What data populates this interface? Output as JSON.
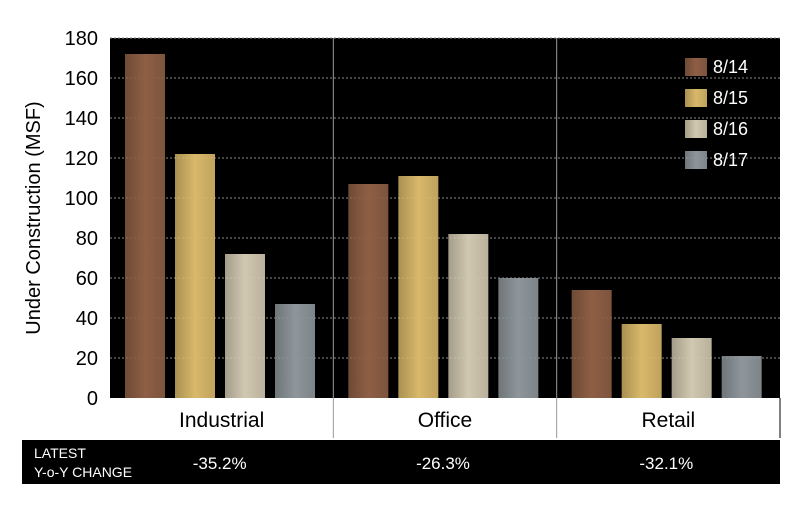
{
  "chart_data": {
    "type": "bar",
    "ylabel": "Under Construction (MSF)",
    "ylim": [
      0,
      180
    ],
    "yticks": [
      0,
      20,
      40,
      60,
      80,
      100,
      120,
      140,
      160,
      180
    ],
    "grid": true,
    "legend_position": "top-right",
    "categories": [
      "Industrial",
      "Office",
      "Retail"
    ],
    "series": [
      {
        "name": "8/14",
        "color": "#8e5f45",
        "values": [
          172,
          107,
          54
        ]
      },
      {
        "name": "8/15",
        "color": "#d9b86a",
        "values": [
          122,
          111,
          37
        ]
      },
      {
        "name": "8/16",
        "color": "#d1c8b0",
        "values": [
          72,
          82,
          30
        ]
      },
      {
        "name": "8/17",
        "color": "#8e969b",
        "values": [
          47,
          60,
          21
        ]
      }
    ]
  },
  "footer": {
    "label_line1": "LATEST",
    "label_line2": "Y-o-Y CHANGE",
    "changes": [
      "-35.2%",
      "-26.3%",
      "-32.1%"
    ]
  },
  "colors": {
    "plot_background": "#000000",
    "grid": "#8a8a8a",
    "footer_background": "#000000"
  }
}
